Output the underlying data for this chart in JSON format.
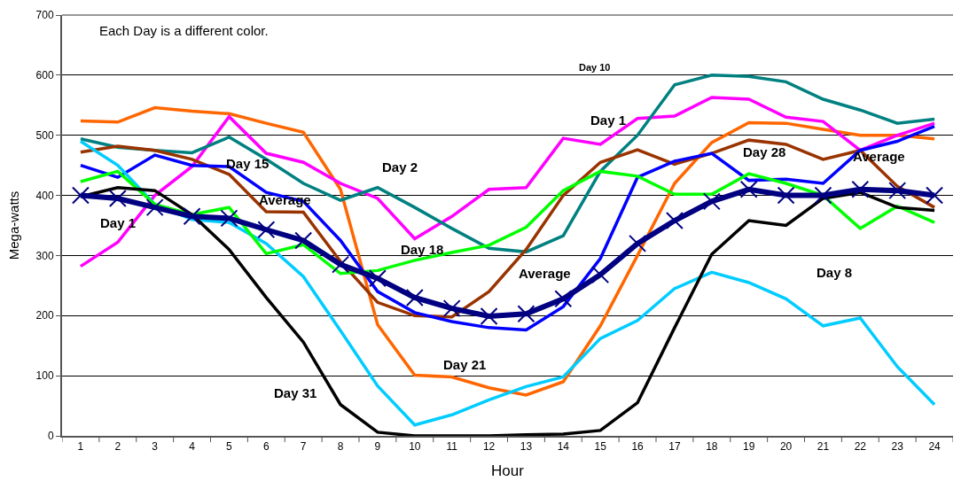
{
  "chart_data": {
    "type": "line",
    "xlabel": "Hour",
    "ylabel": "Mega-watts",
    "x": [
      1,
      2,
      3,
      4,
      5,
      6,
      7,
      8,
      9,
      10,
      11,
      12,
      13,
      14,
      15,
      16,
      17,
      18,
      19,
      20,
      21,
      22,
      23,
      24
    ],
    "xlim": [
      0.5,
      24.5
    ],
    "xticks": [
      1,
      2,
      3,
      4,
      5,
      6,
      7,
      8,
      9,
      10,
      11,
      12,
      13,
      14,
      15,
      16,
      17,
      18,
      19,
      20,
      21,
      22,
      23,
      24
    ],
    "ylim": [
      0,
      700
    ],
    "yticks": [
      0,
      100,
      200,
      300,
      400,
      500,
      600,
      700
    ],
    "grid": "y",
    "line_style": "solid",
    "series": [
      {
        "color": "#ff6600",
        "values": [
          524,
          522,
          546,
          540,
          536,
          520,
          505,
          410,
          185,
          101,
          98,
          80,
          68,
          90,
          183,
          300,
          420,
          488,
          521,
          520,
          510,
          500,
          500,
          494
        ]
      },
      {
        "color": "#ff00ff",
        "values": [
          282,
          322,
          400,
          448,
          531,
          470,
          455,
          420,
          395,
          328,
          365,
          410,
          413,
          495,
          485,
          528,
          532,
          563,
          560,
          530,
          523,
          475,
          500,
          520
        ]
      },
      {
        "color": "#008080",
        "values": [
          494,
          480,
          475,
          471,
          497,
          460,
          420,
          392,
          413,
          380,
          345,
          312,
          306,
          333,
          440,
          500,
          584,
          600,
          598,
          589,
          560,
          542,
          520,
          527
        ]
      },
      {
        "color": "#993300",
        "values": [
          472,
          482,
          475,
          460,
          435,
          373,
          372,
          290,
          222,
          200,
          198,
          240,
          310,
          400,
          455,
          476,
          452,
          470,
          492,
          485,
          460,
          475,
          415,
          380
        ]
      },
      {
        "color": "#0000ff",
        "values": [
          450,
          430,
          467,
          450,
          448,
          405,
          390,
          325,
          240,
          205,
          190,
          180,
          176,
          215,
          295,
          430,
          457,
          470,
          425,
          427,
          420,
          475,
          490,
          515
        ]
      },
      {
        "color": "#00ccff",
        "values": [
          490,
          450,
          385,
          360,
          355,
          320,
          265,
          175,
          83,
          18,
          35,
          60,
          82,
          98,
          162,
          192,
          245,
          272,
          255,
          228,
          183,
          196,
          115,
          52
        ]
      },
      {
        "color": "#00ff00",
        "values": [
          423,
          440,
          385,
          368,
          380,
          303,
          318,
          270,
          275,
          292,
          305,
          317,
          347,
          408,
          440,
          432,
          402,
          402,
          436,
          420,
          400,
          345,
          382,
          355
        ]
      },
      {
        "color": "#000000",
        "values": [
          398,
          413,
          408,
          368,
          310,
          230,
          156,
          52,
          6,
          0,
          0,
          0,
          2,
          3,
          9,
          55,
          180,
          302,
          358,
          350,
          395,
          405,
          380,
          375
        ]
      },
      {
        "color": "#000080",
        "marker": "cross",
        "values": [
          400,
          395,
          380,
          365,
          362,
          343,
          325,
          285,
          262,
          230,
          212,
          199,
          203,
          228,
          268,
          320,
          358,
          390,
          410,
          400,
          400,
          410,
          408,
          400
        ]
      }
    ],
    "annotations": [
      "Each Day is a different color.",
      "Day 10",
      "Day 1",
      "Day 15",
      "Day 2",
      "Average",
      "Day 1",
      "Day 18",
      "Average",
      "Day 28",
      "Average",
      "Day 8",
      "Day 21",
      "Day 31"
    ]
  }
}
